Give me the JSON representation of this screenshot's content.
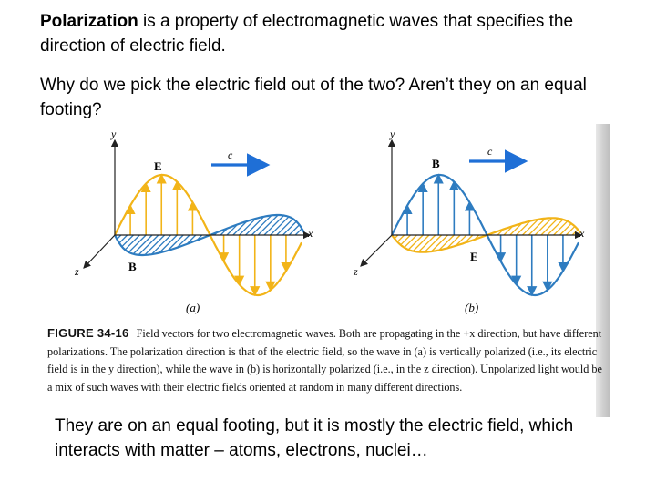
{
  "slide": {
    "intro": {
      "term": "Polarization",
      "rest": " is a property of electromagnetic waves that specifies the direction of electric field."
    },
    "question": "Why do we pick the electric field out of the two? Aren’t they on an equal footing?",
    "answer": "They are on an equal footing, but it is mostly the electric field, which interacts with matter – atoms, electrons, nuclei…"
  },
  "figure": {
    "label": "FIGURE 34-16",
    "caption": "Field vectors for two electromagnetic waves. Both are propagating in the +x direction, but have different polarizations. The polarization direction is that of the electric field, so the wave in (a) is vertically polarized (i.e., its electric field is in the y direction), while the wave in (b) is horizontally polarized (i.e., in the z direction). Unpolarized light would be a mix of such waves with their electric fields oriented at random in many different directions.",
    "panel_a": {
      "y_axis": "y",
      "x_axis": "x",
      "z_axis": "z",
      "e_label": "E",
      "b_label": "B",
      "c_label": "c",
      "sub_label": "(a)"
    },
    "panel_b": {
      "y_axis": "y",
      "x_axis": "x",
      "z_axis": "z",
      "e_label": "E",
      "b_label": "B",
      "c_label": "c",
      "sub_label": "(b)"
    },
    "colors": {
      "electric": "#f2b418",
      "magnetic": "#2e7cc0",
      "propagation": "#1f6fd6",
      "axis": "#222222"
    }
  }
}
